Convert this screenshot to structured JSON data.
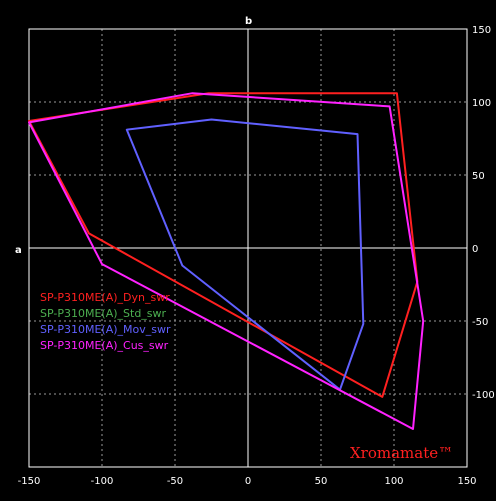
{
  "chart_data": {
    "type": "line",
    "xlabel": "a",
    "ylabel": "b",
    "xlim": [
      -150,
      150
    ],
    "ylim": [
      -150,
      150
    ],
    "x_ticks": [
      -150,
      -100,
      -50,
      0,
      50,
      100,
      150
    ],
    "y_ticks": [
      150,
      100,
      50,
      0,
      -50,
      -100
    ],
    "grid": true,
    "legend_position": "left-middle",
    "colors": {
      "background": "#000000",
      "frame": "#ffffff",
      "axis": "#ffffff",
      "grid": "#9a9a9a",
      "tick_text": "#ffffff"
    },
    "series": [
      {
        "name": "SP-P310ME(A)_Dyn_swr",
        "color": "#ff2020",
        "closed": true,
        "points": [
          [
            -150,
            87
          ],
          [
            -27,
            106
          ],
          [
            102,
            106
          ],
          [
            116,
            -23
          ],
          [
            92,
            -102
          ],
          [
            -109,
            10
          ]
        ]
      },
      {
        "name": "SP-P310ME(A)_Std_swr",
        "color": "#4caf50",
        "closed": true,
        "points": []
      },
      {
        "name": "SP-P310ME(A)_Mov_swr",
        "color": "#6060ff",
        "closed": true,
        "points": [
          [
            -83,
            81
          ],
          [
            -25,
            88
          ],
          [
            75,
            78
          ],
          [
            79,
            -52
          ],
          [
            63,
            -97
          ],
          [
            -45,
            -12
          ]
        ]
      },
      {
        "name": "SP-P310ME(A)_Cus_swr",
        "color": "#ff22ff",
        "closed": true,
        "points": [
          [
            -150,
            86
          ],
          [
            -38,
            106
          ],
          [
            97,
            97
          ],
          [
            120,
            -50
          ],
          [
            113,
            -124
          ],
          [
            -100,
            -11
          ]
        ]
      }
    ],
    "watermark": "Xromamate™",
    "watermark_color": "#ff2020"
  }
}
